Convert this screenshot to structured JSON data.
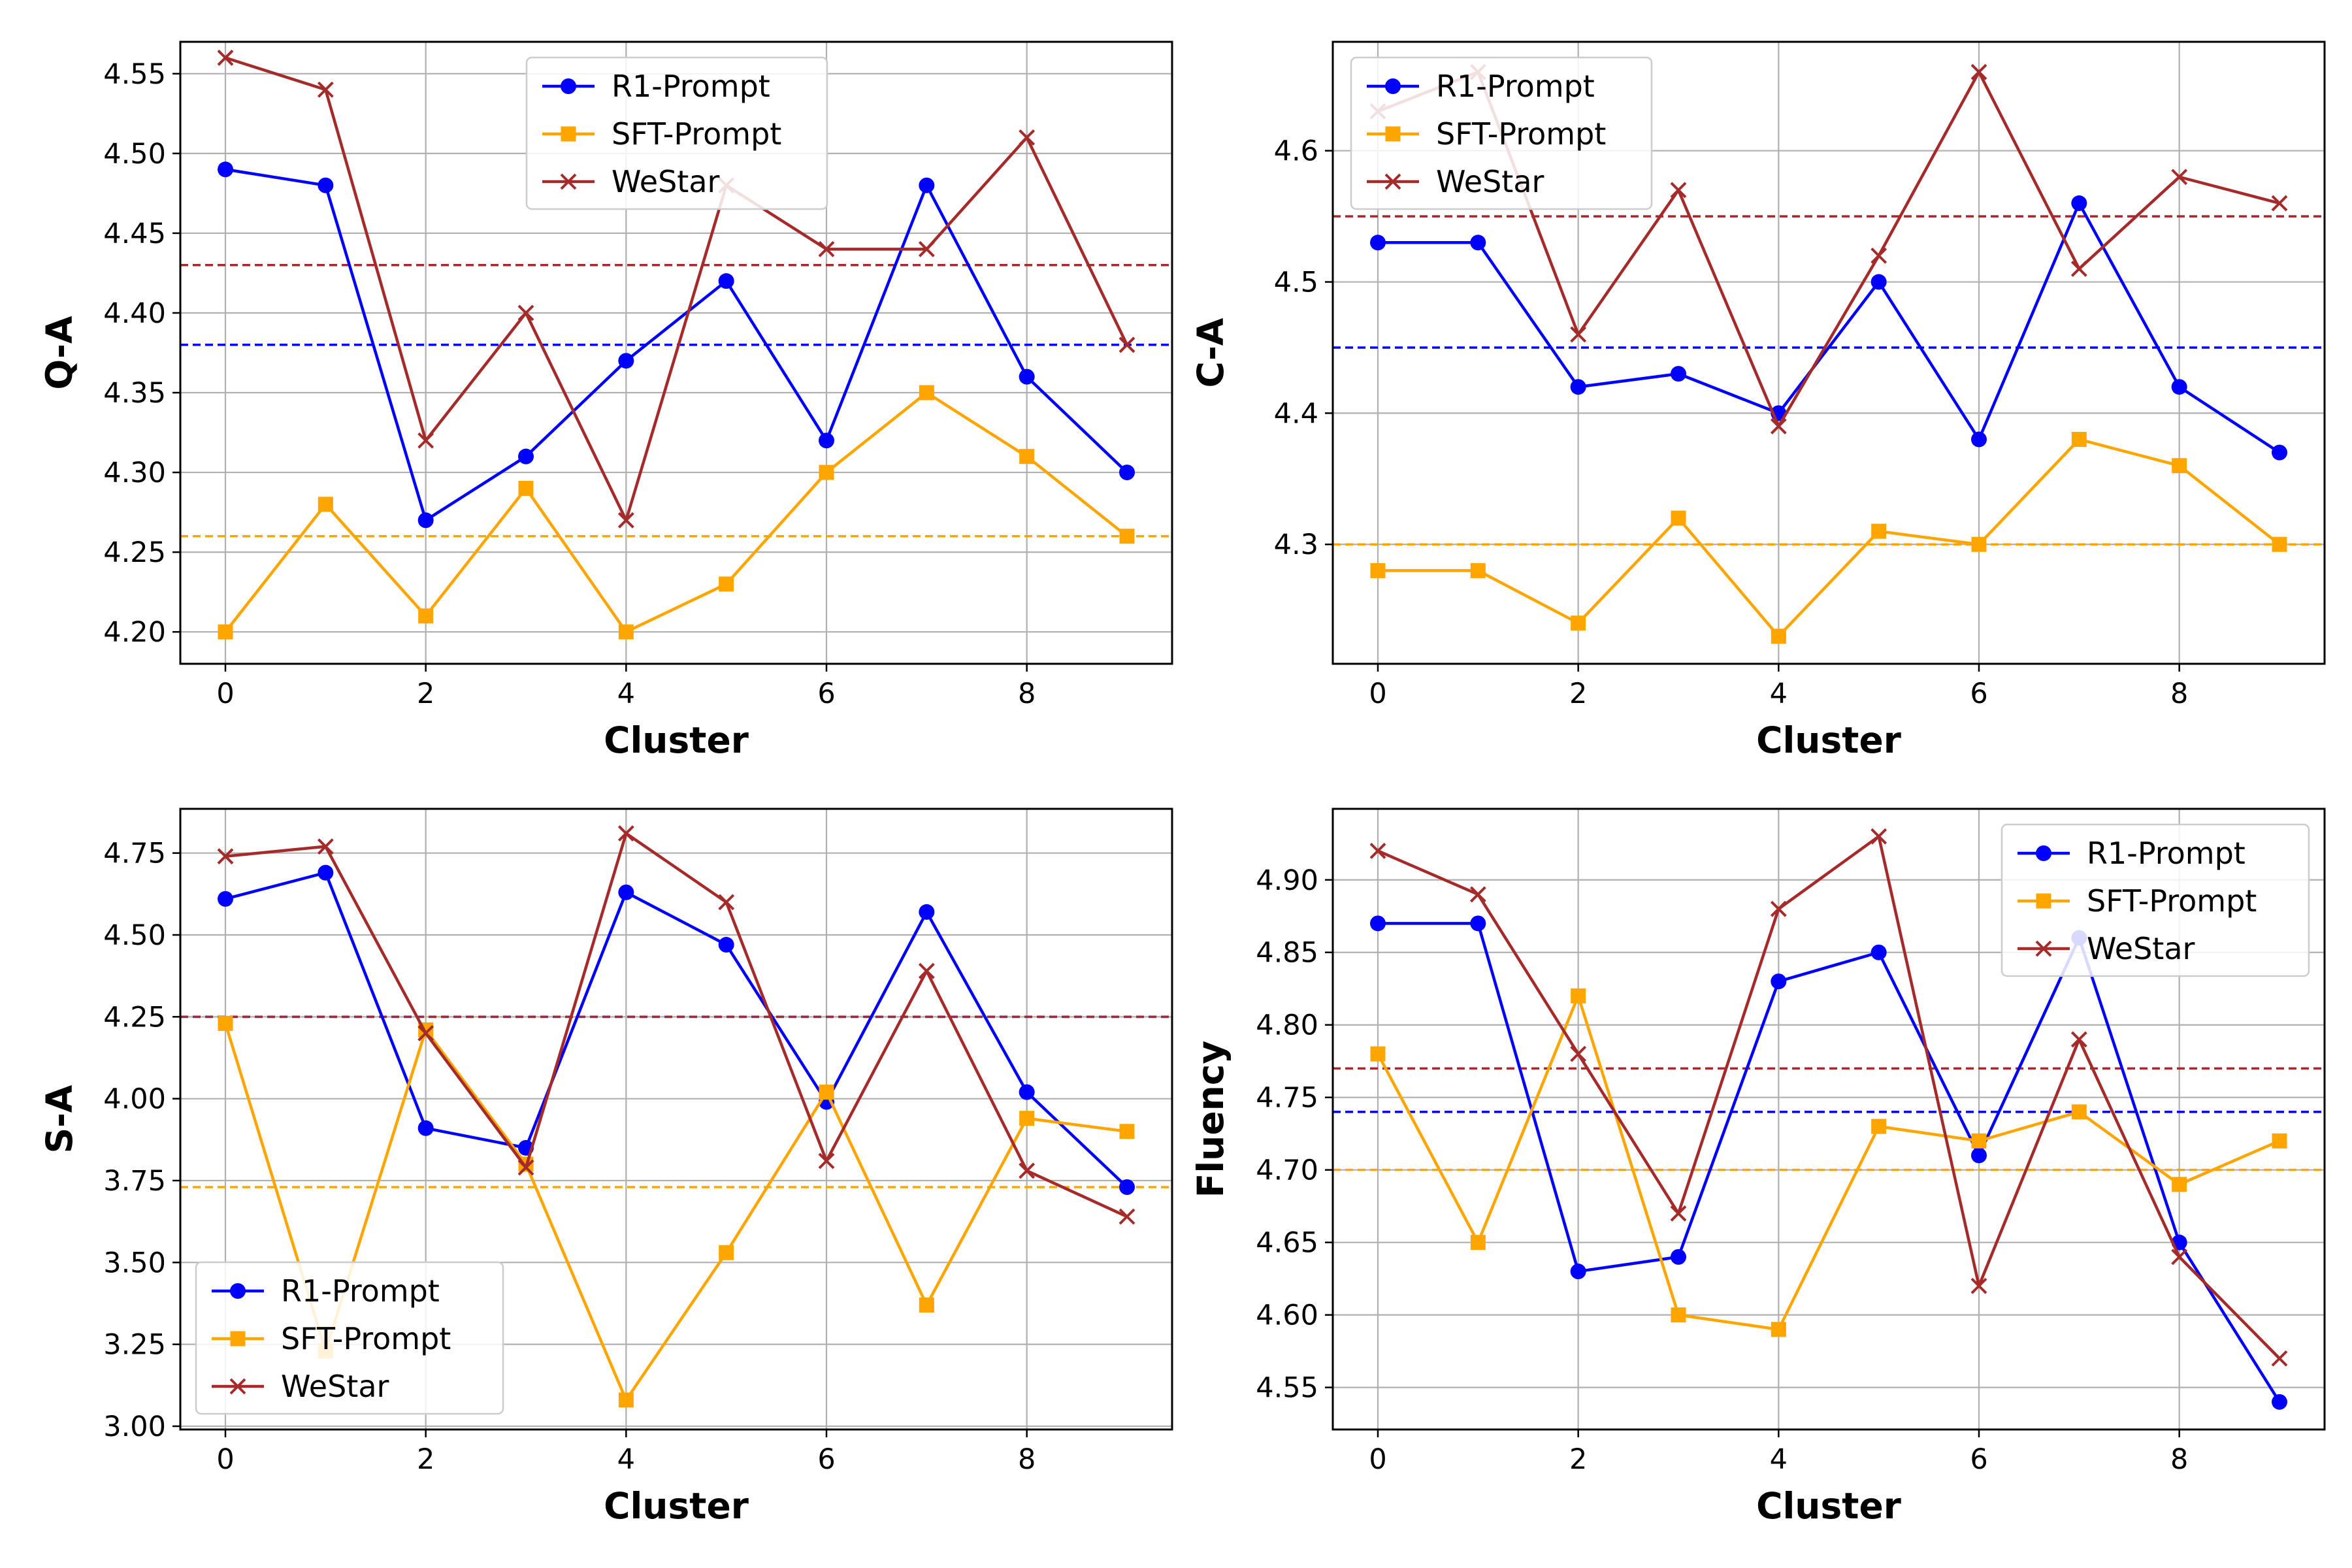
{
  "chart_data": [
    {
      "type": "line",
      "xlabel": "Cluster",
      "ylabel": "Q-A",
      "x": [
        0,
        1,
        2,
        3,
        4,
        5,
        6,
        7,
        8,
        9
      ],
      "xticks": [
        "0",
        "2",
        "4",
        "6",
        "8"
      ],
      "ylim": [
        4.18,
        4.57
      ],
      "yticks": [
        "4.20",
        "4.25",
        "4.30",
        "4.35",
        "4.40",
        "4.45",
        "4.50",
        "4.55"
      ],
      "legend_position": "upper-center",
      "series": [
        {
          "name": "R1-Prompt",
          "color": "#0000ff",
          "marker": "circle",
          "values": [
            4.49,
            4.48,
            4.27,
            4.31,
            4.37,
            4.42,
            4.32,
            4.48,
            4.36,
            4.3
          ],
          "mean": 4.38
        },
        {
          "name": "SFT-Prompt",
          "color": "#ffa500",
          "marker": "square",
          "values": [
            4.2,
            4.28,
            4.21,
            4.29,
            4.2,
            4.23,
            4.3,
            4.35,
            4.31,
            4.26
          ],
          "mean": 4.26
        },
        {
          "name": "WeStar",
          "color": "#a52a2a",
          "marker": "x",
          "values": [
            4.56,
            4.54,
            4.32,
            4.4,
            4.27,
            4.48,
            4.44,
            4.44,
            4.51,
            4.38
          ],
          "mean": 4.43
        }
      ]
    },
    {
      "type": "line",
      "xlabel": "Cluster",
      "ylabel": "C-A",
      "x": [
        0,
        1,
        2,
        3,
        4,
        5,
        6,
        7,
        8,
        9
      ],
      "xticks": [
        "0",
        "2",
        "4",
        "6",
        "8"
      ],
      "ylim": [
        4.209,
        4.683
      ],
      "yticks": [
        "4.3",
        "4.4",
        "4.5",
        "4.6"
      ],
      "legend_position": "upper-left",
      "series": [
        {
          "name": "R1-Prompt",
          "color": "#0000ff",
          "marker": "circle",
          "values": [
            4.53,
            4.53,
            4.42,
            4.43,
            4.4,
            4.5,
            4.38,
            4.56,
            4.42,
            4.37
          ],
          "mean": 4.45
        },
        {
          "name": "SFT-Prompt",
          "color": "#ffa500",
          "marker": "square",
          "values": [
            4.28,
            4.28,
            4.24,
            4.32,
            4.23,
            4.31,
            4.3,
            4.38,
            4.36,
            4.3
          ],
          "mean": 4.3
        },
        {
          "name": "WeStar",
          "color": "#a52a2a",
          "marker": "x",
          "values": [
            4.63,
            4.66,
            4.46,
            4.57,
            4.39,
            4.52,
            4.66,
            4.51,
            4.58,
            4.56
          ],
          "mean": 4.55
        }
      ]
    },
    {
      "type": "line",
      "xlabel": "Cluster",
      "ylabel": "S-A",
      "x": [
        0,
        1,
        2,
        3,
        4,
        5,
        6,
        7,
        8,
        9
      ],
      "xticks": [
        "0",
        "2",
        "4",
        "6",
        "8"
      ],
      "ylim": [
        2.99,
        4.885
      ],
      "yticks": [
        "3.00",
        "3.25",
        "3.50",
        "3.75",
        "4.00",
        "4.25",
        "4.50",
        "4.75"
      ],
      "legend_position": "lower-left",
      "series": [
        {
          "name": "R1-Prompt",
          "color": "#0000ff",
          "marker": "circle",
          "values": [
            4.61,
            4.69,
            3.91,
            3.85,
            4.63,
            4.47,
            3.99,
            4.57,
            4.02,
            3.73
          ],
          "mean": 4.25
        },
        {
          "name": "SFT-Prompt",
          "color": "#ffa500",
          "marker": "square",
          "values": [
            4.23,
            3.23,
            4.21,
            3.8,
            3.08,
            3.53,
            4.02,
            3.37,
            3.94,
            3.9
          ],
          "mean": 3.73
        },
        {
          "name": "WeStar",
          "color": "#a52a2a",
          "marker": "x",
          "values": [
            4.74,
            4.77,
            4.2,
            3.79,
            4.81,
            4.6,
            3.81,
            4.39,
            3.78,
            3.64
          ],
          "mean": 4.25
        }
      ]
    },
    {
      "type": "line",
      "xlabel": "Cluster",
      "ylabel": "Fluency",
      "x": [
        0,
        1,
        2,
        3,
        4,
        5,
        6,
        7,
        8,
        9
      ],
      "xticks": [
        "0",
        "2",
        "4",
        "6",
        "8"
      ],
      "ylim": [
        4.521,
        4.949
      ],
      "yticks": [
        "4.55",
        "4.60",
        "4.65",
        "4.70",
        "4.75",
        "4.80",
        "4.85",
        "4.90"
      ],
      "legend_position": "upper-right",
      "series": [
        {
          "name": "R1-Prompt",
          "color": "#0000ff",
          "marker": "circle",
          "values": [
            4.87,
            4.87,
            4.63,
            4.64,
            4.83,
            4.85,
            4.71,
            4.86,
            4.65,
            4.54
          ],
          "mean": 4.74
        },
        {
          "name": "SFT-Prompt",
          "color": "#ffa500",
          "marker": "square",
          "values": [
            4.78,
            4.65,
            4.82,
            4.6,
            4.59,
            4.73,
            4.72,
            4.74,
            4.69,
            4.72
          ],
          "mean": 4.7
        },
        {
          "name": "WeStar",
          "color": "#a52a2a",
          "marker": "x",
          "values": [
            4.92,
            4.89,
            4.78,
            4.67,
            4.88,
            4.93,
            4.62,
            4.79,
            4.64,
            4.57
          ],
          "mean": 4.77
        }
      ]
    }
  ]
}
